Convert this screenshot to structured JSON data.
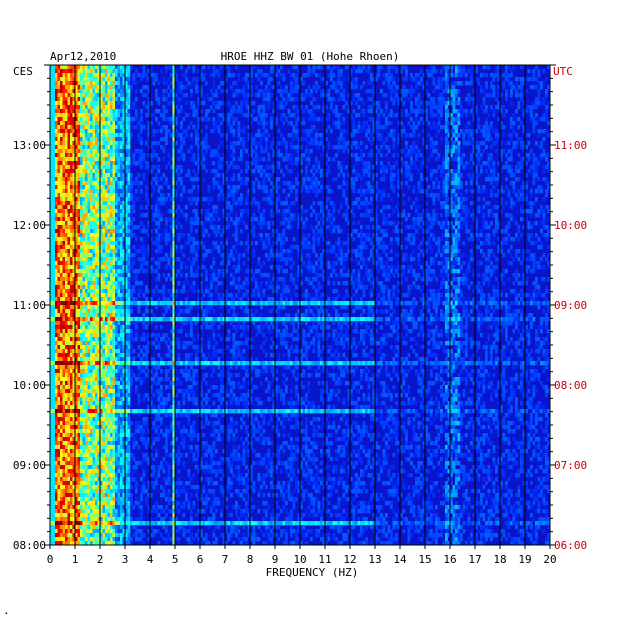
{
  "chart_data": {
    "type": "heatmap",
    "date": "Apr12,2010",
    "title": "HROE HHZ BW 01 (Hohe Rhoen)",
    "left_axis_label": "CES",
    "right_axis_label": "UTC",
    "xlabel": "FREQUENCY (HZ)",
    "x_ticks": [
      "0",
      "1",
      "2",
      "3",
      "4",
      "5",
      "6",
      "7",
      "8",
      "9",
      "10",
      "11",
      "12",
      "13",
      "14",
      "15",
      "16",
      "17",
      "18",
      "19",
      "20"
    ],
    "xlim": [
      0,
      20
    ],
    "left_time_ticks": [
      "08:00",
      "09:00",
      "10:00",
      "11:00",
      "12:00",
      "13:00"
    ],
    "right_time_ticks": [
      "06:00",
      "07:00",
      "08:00",
      "09:00",
      "10:00",
      "11:00"
    ],
    "time_range_ces": [
      "08:00",
      "14:00"
    ],
    "vertical_gridlines_hz": [
      1,
      2,
      3,
      4,
      5,
      6,
      7,
      8,
      9,
      10,
      11,
      12,
      13,
      14,
      15,
      16,
      17,
      18,
      19
    ],
    "energy_bands": [
      {
        "from_hz": 0.2,
        "to_hz": 1.2,
        "level": "high"
      },
      {
        "from_hz": 1.2,
        "to_hz": 2.6,
        "level": "medium"
      },
      {
        "from_hz": 4.9,
        "to_hz": 5.0,
        "level": "medium"
      },
      {
        "from_hz": 15.8,
        "to_hz": 16.4,
        "level": "low"
      }
    ],
    "colors": {
      "background": "#0a14c8",
      "high": "#ff2000",
      "medium": "#40e0c0",
      "low": "#2a60ff"
    }
  },
  "left_label_color": "#000000",
  "right_label_color": "#cc0000",
  "footer_mark": "."
}
